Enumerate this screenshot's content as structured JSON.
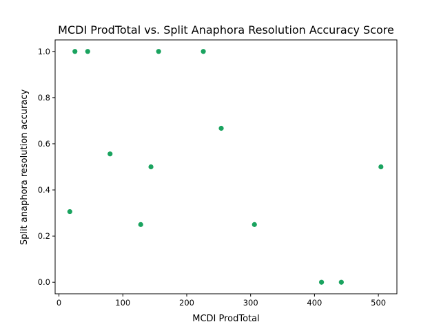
{
  "chart_data": {
    "type": "scatter",
    "title": "MCDI ProdTotal vs. Split Anaphora Resolution Accuracy Score",
    "xlabel": "MCDI ProdTotal",
    "ylabel": "Split anaphora resolution accuracy",
    "xlim": [
      -6,
      529
    ],
    "ylim": [
      -0.05,
      1.05
    ],
    "xticks": [
      0,
      100,
      200,
      300,
      400,
      500
    ],
    "yticks": [
      0.0,
      0.2,
      0.4,
      0.6,
      0.8,
      1.0
    ],
    "xtick_labels": [
      "0",
      "100",
      "200",
      "300",
      "400",
      "500"
    ],
    "ytick_labels": [
      "0.0",
      "0.2",
      "0.4",
      "0.6",
      "0.8",
      "1.0"
    ],
    "grid": false,
    "marker_color": "#1aa35f",
    "points": [
      {
        "x": 17,
        "y": 0.306
      },
      {
        "x": 25,
        "y": 1.0
      },
      {
        "x": 45,
        "y": 1.0
      },
      {
        "x": 80,
        "y": 0.556
      },
      {
        "x": 128,
        "y": 0.25
      },
      {
        "x": 144,
        "y": 0.5
      },
      {
        "x": 156,
        "y": 1.0
      },
      {
        "x": 226,
        "y": 1.0
      },
      {
        "x": 254,
        "y": 0.667
      },
      {
        "x": 306,
        "y": 0.25
      },
      {
        "x": 411,
        "y": 0.0
      },
      {
        "x": 442,
        "y": 0.0
      },
      {
        "x": 504,
        "y": 0.5
      }
    ]
  }
}
